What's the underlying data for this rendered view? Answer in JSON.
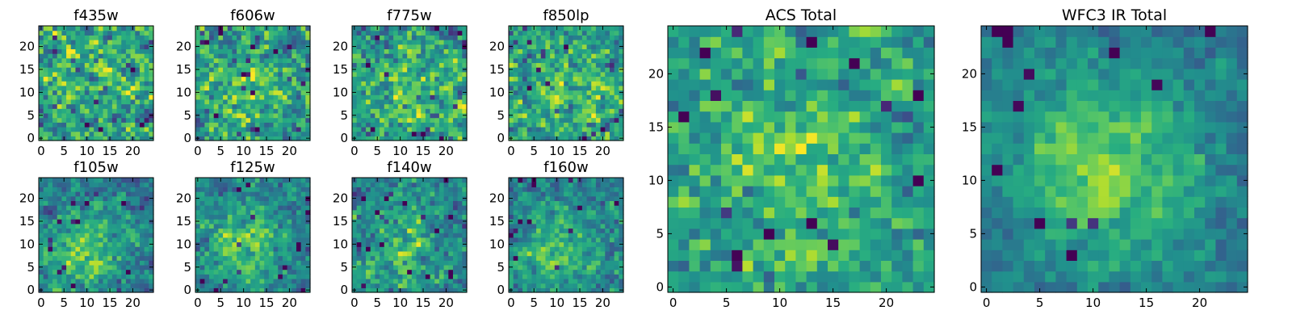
{
  "chart_data": [
    {
      "type": "heatmap",
      "title": "f435w",
      "xlim": [
        0,
        25
      ],
      "ylim": [
        0,
        25
      ],
      "xticks": [
        "0",
        "5",
        "10",
        "15",
        "20"
      ],
      "yticks": [
        "0",
        "5",
        "10",
        "15",
        "20"
      ],
      "grid": false,
      "colormap": "viridis",
      "rows": 25,
      "cols": 25,
      "seed": 11,
      "blob": 0.2,
      "cx": 12,
      "cy": 12,
      "sigma": 6,
      "noise": 1.0,
      "base": 0.58
    },
    {
      "type": "heatmap",
      "title": "f606w",
      "xlim": [
        0,
        25
      ],
      "ylim": [
        0,
        25
      ],
      "xticks": [
        "0",
        "5",
        "10",
        "15",
        "20"
      ],
      "yticks": [
        "0",
        "5",
        "10",
        "15",
        "20"
      ],
      "grid": false,
      "colormap": "viridis",
      "rows": 25,
      "cols": 25,
      "seed": 23,
      "blob": 0.35,
      "cx": 12,
      "cy": 12,
      "sigma": 6,
      "noise": 0.95,
      "base": 0.55
    },
    {
      "type": "heatmap",
      "title": "f775w",
      "xlim": [
        0,
        25
      ],
      "ylim": [
        0,
        25
      ],
      "xticks": [
        "0",
        "5",
        "10",
        "15",
        "20"
      ],
      "yticks": [
        "0",
        "5",
        "10",
        "15",
        "20"
      ],
      "grid": false,
      "colormap": "viridis",
      "rows": 25,
      "cols": 25,
      "seed": 37,
      "blob": 0.35,
      "cx": 12,
      "cy": 11,
      "sigma": 6,
      "noise": 0.95,
      "base": 0.55
    },
    {
      "type": "heatmap",
      "title": "f850lp",
      "xlim": [
        0,
        25
      ],
      "ylim": [
        0,
        25
      ],
      "xticks": [
        "0",
        "5",
        "10",
        "15",
        "20"
      ],
      "yticks": [
        "0",
        "5",
        "10",
        "15",
        "20"
      ],
      "grid": false,
      "colormap": "viridis",
      "rows": 25,
      "cols": 25,
      "seed": 41,
      "blob": 0.35,
      "cx": 12,
      "cy": 11,
      "sigma": 6,
      "noise": 0.95,
      "base": 0.55
    },
    {
      "type": "heatmap",
      "title": "f105w",
      "xlim": [
        0,
        25
      ],
      "ylim": [
        0,
        25
      ],
      "xticks": [
        "0",
        "5",
        "10",
        "15",
        "20"
      ],
      "yticks": [
        "0",
        "5",
        "10",
        "15",
        "20"
      ],
      "grid": false,
      "colormap": "viridis",
      "rows": 25,
      "cols": 25,
      "seed": 53,
      "blob": 0.75,
      "cx": 9,
      "cy": 8,
      "sigma": 6,
      "noise": 0.65,
      "base": 0.42
    },
    {
      "type": "heatmap",
      "title": "f125w",
      "xlim": [
        0,
        25
      ],
      "ylim": [
        0,
        25
      ],
      "xticks": [
        "0",
        "5",
        "10",
        "15",
        "20"
      ],
      "yticks": [
        "0",
        "5",
        "10",
        "15",
        "20"
      ],
      "grid": false,
      "colormap": "viridis",
      "rows": 25,
      "cols": 25,
      "seed": 67,
      "blob": 0.75,
      "cx": 10,
      "cy": 10,
      "sigma": 6,
      "noise": 0.65,
      "base": 0.42
    },
    {
      "type": "heatmap",
      "title": "f140w",
      "xlim": [
        0,
        25
      ],
      "ylim": [
        0,
        25
      ],
      "xticks": [
        "0",
        "5",
        "10",
        "15",
        "20"
      ],
      "yticks": [
        "0",
        "5",
        "10",
        "15",
        "20"
      ],
      "grid": false,
      "colormap": "viridis",
      "rows": 25,
      "cols": 25,
      "seed": 71,
      "blob": 0.55,
      "cx": 10,
      "cy": 10,
      "sigma": 6,
      "noise": 0.75,
      "base": 0.45
    },
    {
      "type": "heatmap",
      "title": "f160w",
      "xlim": [
        0,
        25
      ],
      "ylim": [
        0,
        25
      ],
      "xticks": [
        "0",
        "5",
        "10",
        "15",
        "20"
      ],
      "yticks": [
        "0",
        "5",
        "10",
        "15",
        "20"
      ],
      "grid": false,
      "colormap": "viridis",
      "rows": 25,
      "cols": 25,
      "seed": 83,
      "blob": 0.7,
      "cx": 10,
      "cy": 9,
      "sigma": 6,
      "noise": 0.65,
      "base": 0.42
    },
    {
      "type": "heatmap",
      "title": "ACS Total",
      "xlim": [
        0,
        25
      ],
      "ylim": [
        0,
        25
      ],
      "xticks": [
        "0",
        "5",
        "10",
        "15",
        "20"
      ],
      "yticks": [
        "0",
        "5",
        "10",
        "15",
        "20"
      ],
      "grid": false,
      "colormap": "viridis",
      "rows": 25,
      "cols": 25,
      "seed": 97,
      "blob": 0.45,
      "cx": 11,
      "cy": 11,
      "sigma": 6,
      "noise": 0.75,
      "base": 0.55
    },
    {
      "type": "heatmap",
      "title": "WFC3 IR Total",
      "xlim": [
        0,
        25
      ],
      "ylim": [
        0,
        25
      ],
      "xticks": [
        "0",
        "5",
        "10",
        "15",
        "20"
      ],
      "yticks": [
        "0",
        "5",
        "10",
        "15",
        "20"
      ],
      "grid": false,
      "colormap": "viridis",
      "rows": 25,
      "cols": 25,
      "seed": 101,
      "blob": 0.85,
      "cx": 11,
      "cy": 11,
      "sigma": 7,
      "noise": 0.45,
      "base": 0.38
    }
  ]
}
